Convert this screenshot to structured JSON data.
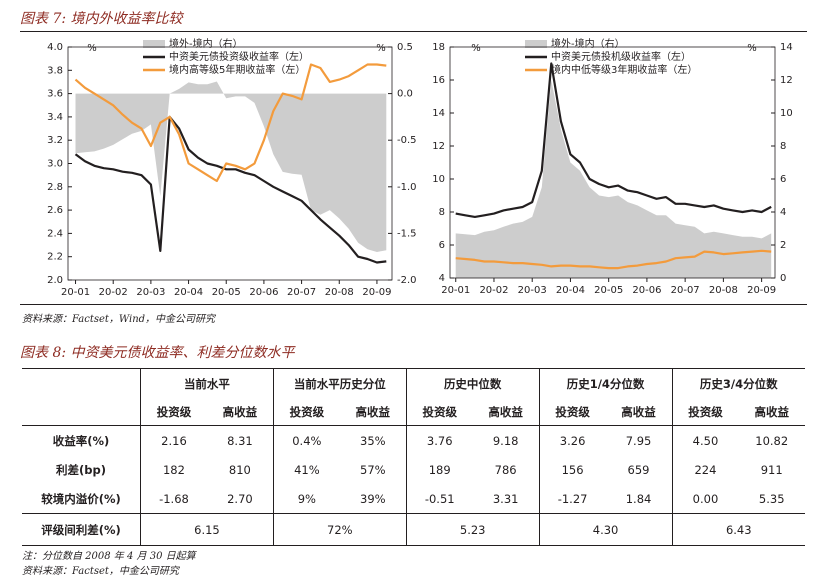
{
  "figure7": {
    "title": "图表 7: 境内外收益率比较",
    "source": "资料来源：Factset，Wind，中金公司研究"
  },
  "chart_data": [
    {
      "type": "line",
      "ylabel": "%",
      "y2label": "%",
      "xlim": [
        -0.2,
        8.4
      ],
      "xticks": [
        {
          "value": 0,
          "label": "20-01"
        },
        {
          "value": 1,
          "label": "20-02"
        },
        {
          "value": 2,
          "label": "20-03"
        },
        {
          "value": 3,
          "label": "20-04"
        },
        {
          "value": 4,
          "label": "20-05"
        },
        {
          "value": 5,
          "label": "20-06"
        },
        {
          "value": 6,
          "label": "20-07"
        },
        {
          "value": 7,
          "label": "20-08"
        },
        {
          "value": 8,
          "label": "20-09"
        }
      ],
      "ylim": [
        2.0,
        4.0
      ],
      "yticks": [
        {
          "value": 2,
          "label": "2.0"
        },
        2.2,
        2.4,
        2.6,
        2.8,
        {
          "value": 3,
          "label": "3.0"
        },
        3.2,
        3.4,
        3.6,
        3.8,
        {
          "value": 4,
          "label": "4.0"
        }
      ],
      "y2lim": [
        -2.0,
        0.5
      ],
      "y2ticks": [
        {
          "value": -2,
          "label": "-2.0"
        },
        -1.5,
        {
          "value": -1,
          "label": "-1.0"
        },
        -0.5,
        {
          "value": 0,
          "label": "0.0"
        },
        0.5
      ],
      "x": [
        0,
        0.25,
        0.5,
        0.75,
        1,
        1.25,
        1.5,
        1.75,
        2,
        2.25,
        2.5,
        2.75,
        3,
        3.25,
        3.5,
        3.75,
        4,
        4.25,
        4.5,
        4.75,
        5,
        5.25,
        5.5,
        5.75,
        6,
        6.25,
        6.5,
        6.75,
        7,
        7.25,
        7.5,
        7.75,
        8,
        8.25
      ],
      "series": [
        {
          "name": "境外-境内（右）",
          "type": "area",
          "axis": "y2",
          "color": "#cdcdcd",
          "values": [
            -0.64,
            -0.63,
            -0.62,
            -0.59,
            -0.55,
            -0.49,
            -0.43,
            -0.4,
            -0.33,
            -1.1,
            0.0,
            0.05,
            0.12,
            0.1,
            0.1,
            0.13,
            -0.05,
            -0.03,
            -0.03,
            -0.1,
            -0.35,
            -0.65,
            -0.84,
            -0.86,
            -0.87,
            -1.25,
            -1.3,
            -1.25,
            -1.34,
            -1.45,
            -1.6,
            -1.67,
            -1.7,
            -1.68
          ]
        },
        {
          "name": "中资美元债投资级收益率（左）",
          "type": "line",
          "color": "#231f20",
          "values": [
            3.08,
            3.02,
            2.98,
            2.96,
            2.95,
            2.93,
            2.92,
            2.9,
            2.82,
            2.25,
            3.4,
            3.3,
            3.12,
            3.05,
            3.0,
            2.98,
            2.95,
            2.95,
            2.92,
            2.9,
            2.85,
            2.8,
            2.76,
            2.72,
            2.68,
            2.6,
            2.52,
            2.45,
            2.38,
            2.3,
            2.2,
            2.18,
            2.15,
            2.16
          ]
        },
        {
          "name": "境内高等级5年期收益率（左）",
          "type": "line",
          "color": "#f39b3c",
          "values": [
            3.72,
            3.65,
            3.6,
            3.55,
            3.5,
            3.42,
            3.35,
            3.3,
            3.15,
            3.35,
            3.4,
            3.25,
            3.0,
            2.95,
            2.9,
            2.85,
            3.0,
            2.98,
            2.95,
            3.0,
            3.2,
            3.45,
            3.6,
            3.58,
            3.55,
            3.85,
            3.82,
            3.7,
            3.72,
            3.75,
            3.8,
            3.85,
            3.85,
            3.84
          ]
        }
      ]
    },
    {
      "type": "line",
      "ylabel": "%",
      "y2label": "%",
      "xlim": [
        -0.15,
        8.35
      ],
      "xticks": [
        {
          "value": 0,
          "label": "20-01"
        },
        {
          "value": 1,
          "label": "20-02"
        },
        {
          "value": 2,
          "label": "20-03"
        },
        {
          "value": 3,
          "label": "20-04"
        },
        {
          "value": 4,
          "label": "20-05"
        },
        {
          "value": 5,
          "label": "20-06"
        },
        {
          "value": 6,
          "label": "20-07"
        },
        {
          "value": 7,
          "label": "20-08"
        },
        {
          "value": 8,
          "label": "20-09"
        }
      ],
      "ylim": [
        4,
        18
      ],
      "yticks": [
        4,
        6,
        8,
        10,
        12,
        14,
        16,
        18
      ],
      "y2lim": [
        0,
        14
      ],
      "y2ticks": [
        0,
        2,
        4,
        6,
        8,
        10,
        12,
        14
      ],
      "x": [
        0,
        0.25,
        0.5,
        0.75,
        1,
        1.25,
        1.5,
        1.75,
        2,
        2.25,
        2.5,
        2.75,
        3,
        3.25,
        3.5,
        3.75,
        4,
        4.25,
        4.5,
        4.75,
        5,
        5.25,
        5.5,
        5.75,
        6,
        6.25,
        6.5,
        6.75,
        7,
        7.25,
        7.5,
        7.75,
        8,
        8.25
      ],
      "series": [
        {
          "name": "境外-境内（右）",
          "type": "area",
          "axis": "y2",
          "color": "#cdcdcd",
          "values": [
            2.7,
            2.65,
            2.6,
            2.8,
            2.9,
            3.1,
            3.3,
            3.4,
            3.7,
            5.5,
            12.0,
            9.0,
            7.0,
            6.5,
            5.5,
            5.0,
            4.9,
            5.0,
            4.6,
            4.4,
            4.1,
            3.8,
            3.8,
            3.3,
            3.2,
            3.1,
            2.7,
            2.8,
            2.7,
            2.6,
            2.5,
            2.5,
            2.4,
            2.7
          ]
        },
        {
          "name": "中资美元债投机级收益率（左）",
          "type": "line",
          "color": "#231f20",
          "values": [
            7.9,
            7.8,
            7.7,
            7.8,
            7.9,
            8.1,
            8.2,
            8.3,
            8.6,
            10.5,
            17.0,
            13.5,
            11.5,
            11.0,
            10.0,
            9.7,
            9.5,
            9.6,
            9.3,
            9.2,
            9.0,
            8.8,
            8.9,
            8.5,
            8.5,
            8.4,
            8.3,
            8.4,
            8.2,
            8.1,
            8.0,
            8.1,
            8.0,
            8.31
          ]
        },
        {
          "name": "境内中低等级3年期收益率（左）",
          "type": "line",
          "color": "#f39b3c",
          "values": [
            5.2,
            5.15,
            5.1,
            5.0,
            5.0,
            4.95,
            4.9,
            4.9,
            4.85,
            4.8,
            4.7,
            4.75,
            4.75,
            4.7,
            4.7,
            4.65,
            4.6,
            4.6,
            4.7,
            4.75,
            4.85,
            4.9,
            5.0,
            5.2,
            5.25,
            5.3,
            5.6,
            5.55,
            5.45,
            5.5,
            5.55,
            5.6,
            5.65,
            5.6
          ]
        }
      ]
    }
  ],
  "figure8": {
    "title": "图表 8: 中资美元债收益率、利差分位数水平"
  },
  "table": {
    "groups": [
      "当前水平",
      "当前水平历史分位",
      "历史中位数",
      "历史1/4分位数",
      "历史3/4分位数"
    ],
    "subheaders": [
      "投资级",
      "高收益",
      "投资级",
      "高收益",
      "投资级",
      "高收益",
      "投资级",
      "高收益",
      "投资级",
      "高收益"
    ],
    "rows": [
      {
        "label": "收益率(%)",
        "cells": [
          "2.16",
          "8.31",
          "0.4%",
          "35%",
          "3.76",
          "9.18",
          "3.26",
          "7.95",
          "4.50",
          "10.82"
        ]
      },
      {
        "label": "利差(bp)",
        "cells": [
          "182",
          "810",
          "41%",
          "57%",
          "189",
          "786",
          "156",
          "659",
          "224",
          "911"
        ]
      },
      {
        "label": "较境内溢价(%)",
        "cells": [
          "-1.68",
          "2.70",
          "9%",
          "39%",
          "-0.51",
          "3.31",
          "-1.27",
          "1.84",
          "0.00",
          "5.35"
        ]
      }
    ],
    "spread_row": {
      "label": "评级间利差(%)",
      "cells": [
        "6.15",
        "72%",
        "5.23",
        "4.30",
        "6.43"
      ]
    }
  },
  "notes": [
    "注：分位数自 2008 年 4 月 30 日起算",
    "资料来源：Factset，中金公司研究"
  ]
}
